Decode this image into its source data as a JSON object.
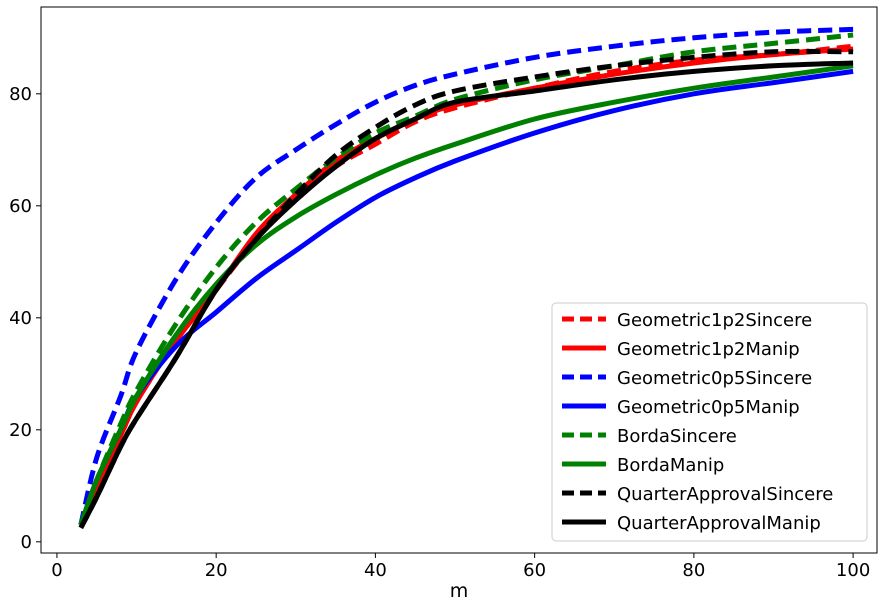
{
  "chart_data": {
    "type": "line",
    "title": "",
    "xlabel": "m",
    "ylabel": "",
    "xlim": [
      -2,
      103
    ],
    "ylim": [
      -2,
      95.5
    ],
    "xticks": [
      0,
      20,
      40,
      60,
      80,
      100
    ],
    "yticks": [
      0,
      20,
      40,
      60,
      80
    ],
    "grid": false,
    "legend_position": "lower-right",
    "x": [
      3,
      5,
      8,
      10,
      15,
      20,
      25,
      30,
      35,
      40,
      45,
      50,
      60,
      70,
      80,
      90,
      100
    ],
    "series": [
      {
        "name": "Geometric1p2Sincere",
        "color": "#ff0000",
        "dash": "dashed",
        "values": [
          3,
          10,
          19,
          25,
          36,
          45,
          54,
          61,
          67,
          71,
          75,
          77.5,
          81,
          84,
          86,
          87,
          88.5
        ]
      },
      {
        "name": "Geometric1p2Manip",
        "color": "#ff0000",
        "dash": "solid",
        "values": [
          3,
          10,
          19,
          25,
          36,
          45,
          55,
          62,
          68,
          72,
          75.5,
          78,
          81,
          83.5,
          85.5,
          87,
          88
        ]
      },
      {
        "name": "Geometric0p5Sincere",
        "color": "#0000ff",
        "dash": "dashed",
        "values": [
          3,
          15,
          26,
          34,
          47,
          57,
          65,
          70,
          74.5,
          78.5,
          81.5,
          83.5,
          86.5,
          88.5,
          90,
          91,
          91.5
        ]
      },
      {
        "name": "Geometric0p5Manip",
        "color": "#0000ff",
        "dash": "solid",
        "values": [
          3,
          11,
          20,
          26,
          35,
          41,
          47,
          52,
          57,
          61.5,
          65,
          68,
          73,
          77,
          80,
          82,
          84
        ]
      },
      {
        "name": "BordaSincere",
        "color": "#008000",
        "dash": "dashed",
        "values": [
          3,
          11,
          21,
          27,
          39,
          49,
          57,
          63,
          68.5,
          73,
          76,
          79,
          82.5,
          85,
          87.5,
          89,
          90.5
        ]
      },
      {
        "name": "BordaManip",
        "color": "#008000",
        "dash": "solid",
        "values": [
          3,
          11,
          20,
          26,
          37,
          46,
          53,
          58,
          62,
          65.5,
          68.5,
          71,
          75.5,
          78.5,
          81,
          83,
          85
        ]
      },
      {
        "name": "QuarterApprovalSincere",
        "color": "#000000",
        "dash": "dashed",
        "values": [
          2.5,
          8,
          17,
          22,
          33,
          45,
          54,
          62,
          69,
          74,
          78,
          80.5,
          83,
          85,
          86.5,
          87.5,
          87.5
        ]
      },
      {
        "name": "QuarterApprovalManip",
        "color": "#000000",
        "dash": "solid",
        "values": [
          2.5,
          8,
          17,
          22,
          33,
          45,
          54,
          61,
          67,
          72,
          75.5,
          78.5,
          80.5,
          82.5,
          84,
          85,
          85.5
        ]
      }
    ]
  }
}
